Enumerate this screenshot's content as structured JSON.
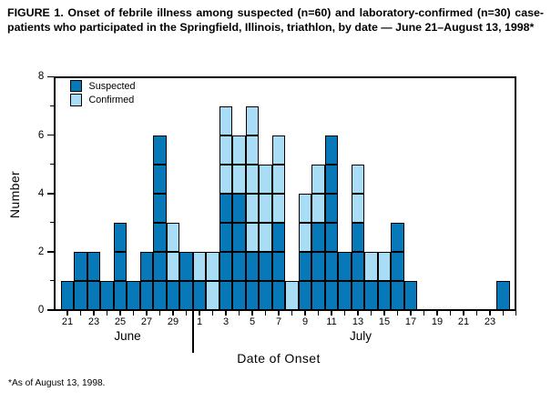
{
  "figure": {
    "title": "FIGURE 1. Onset of febrile illness among suspected (n=60) and laboratory-confirmed (n=30) case-patients who participated in the Springfield, Illinois, triathlon, by date — June 21–August 13, 1998*",
    "footnote": "*As of August 13, 1998."
  },
  "colors": {
    "suspected": "#0879B8",
    "confirmed": "#A9DDF5",
    "axis": "#000000",
    "background": "#FFFFFF"
  },
  "legend": {
    "items": [
      {
        "label": "Suspected",
        "color_key": "suspected"
      },
      {
        "label": "Confirmed",
        "color_key": "confirmed"
      }
    ]
  },
  "chart_data": {
    "type": "bar",
    "subtype": "stacked epidemic curve, 1 box = 1 case",
    "title": "FIGURE 1. Onset of febrile illness among suspected (n=60) and laboratory-confirmed (n=30) case-patients who participated in the Springfield, Illinois, triathlon, by date — June 21–August 13, 1998*",
    "xlabel": "Date of Onset",
    "ylabel": "Number",
    "ylim": [
      0,
      8
    ],
    "yticks": [
      0,
      2,
      4,
      6,
      8
    ],
    "yticks_minor": [
      1,
      3,
      5,
      7
    ],
    "grid": false,
    "legend_position": "top-left-inside",
    "months": [
      {
        "label": "June",
        "start_day": 21,
        "end_day": 30
      },
      {
        "label": "July",
        "start_day": 1,
        "end_day": 24
      }
    ],
    "categories": [
      "June 21",
      "June 22",
      "June 23",
      "June 24",
      "June 25",
      "June 26",
      "June 27",
      "June 28",
      "June 29",
      "June 30",
      "July 1",
      "July 2",
      "July 3",
      "July 4",
      "July 5",
      "July 6",
      "July 7",
      "July 8",
      "July 9",
      "July 10",
      "July 11",
      "July 12",
      "July 13",
      "July 14",
      "July 15",
      "July 16",
      "July 17",
      "July 18",
      "July 19",
      "July 20",
      "July 21",
      "July 22",
      "July 23",
      "July 24"
    ],
    "series": [
      {
        "name": "Suspected",
        "values": [
          1,
          2,
          2,
          1,
          3,
          1,
          2,
          6,
          1,
          2,
          1,
          0,
          4,
          4,
          2,
          2,
          3,
          0,
          2,
          3,
          6,
          2,
          3,
          1,
          1,
          3,
          1,
          0,
          0,
          0,
          0,
          0,
          0,
          1
        ]
      },
      {
        "name": "Confirmed",
        "values": [
          0,
          0,
          0,
          0,
          0,
          0,
          0,
          0,
          2,
          0,
          1,
          2,
          3,
          2,
          5,
          3,
          3,
          1,
          2,
          2,
          0,
          0,
          2,
          1,
          1,
          0,
          0,
          0,
          0,
          0,
          0,
          0,
          0,
          0
        ]
      }
    ]
  }
}
